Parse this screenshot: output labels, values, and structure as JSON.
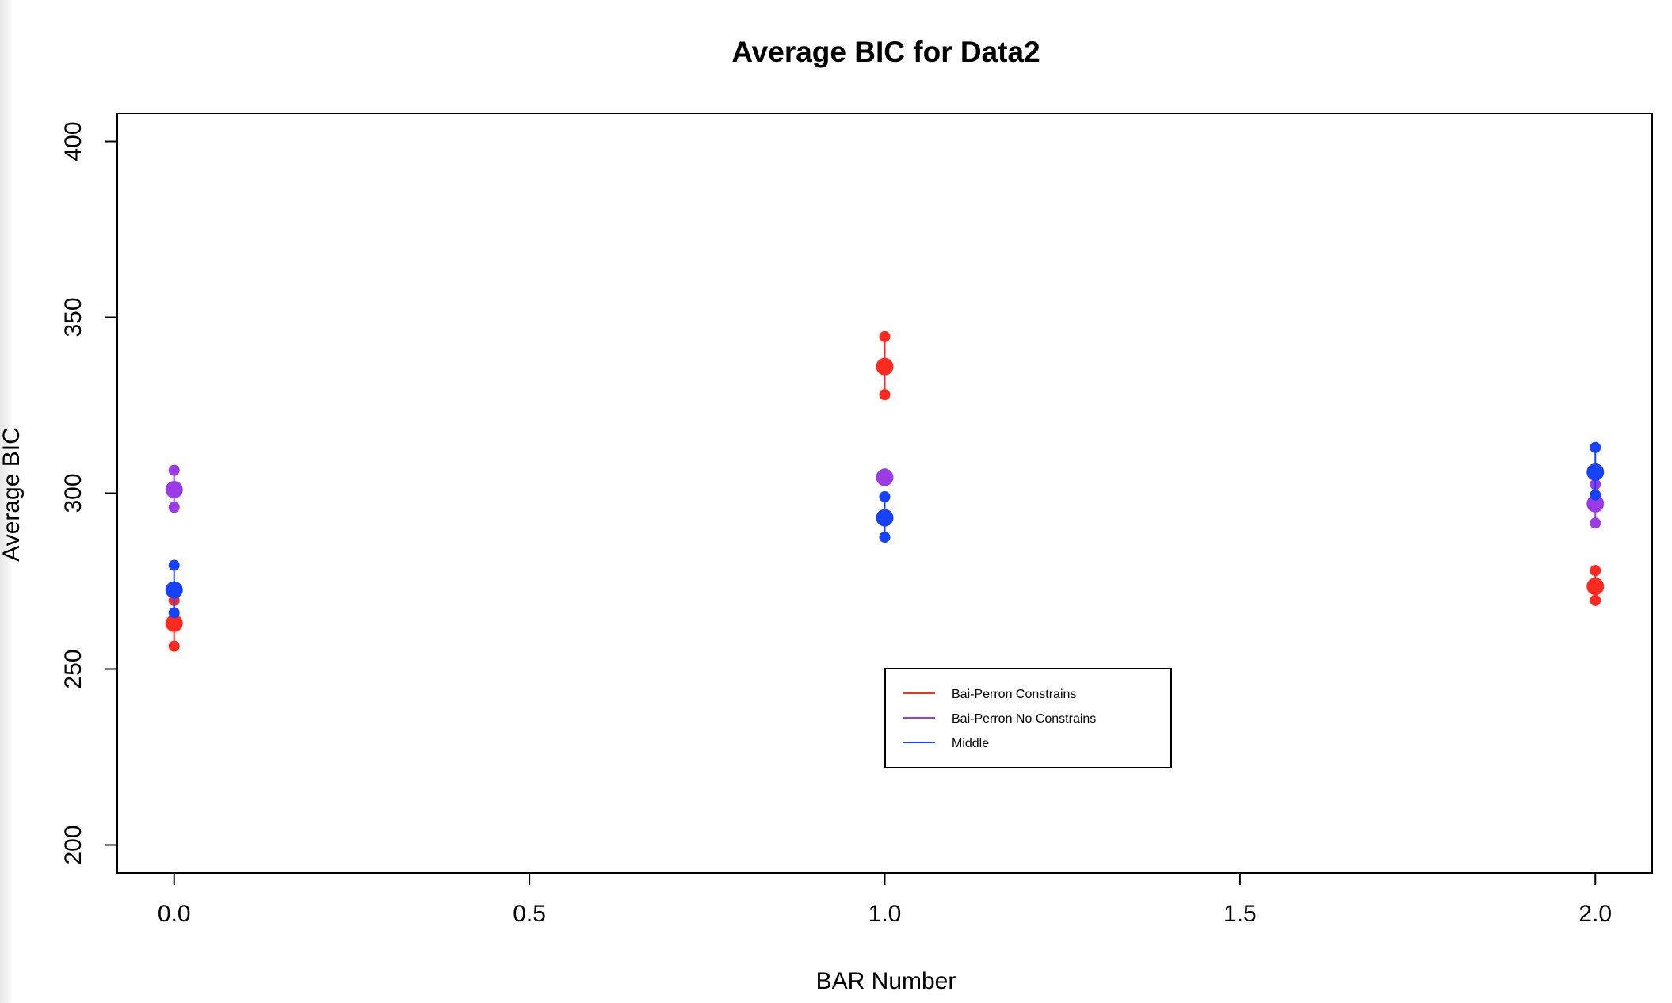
{
  "chart_data": {
    "type": "scatter",
    "title": "Average BIC for Data2",
    "xlabel": "BAR Number",
    "ylabel": "Average BIC",
    "xlim": [
      -0.08,
      2.08
    ],
    "ylim": [
      192,
      408
    ],
    "x_ticks": [
      "0.0",
      "0.5",
      "1.0",
      "1.5",
      "2.0"
    ],
    "y_ticks": [
      "200",
      "250",
      "300",
      "350",
      "400"
    ],
    "grid": false,
    "legend_position": "bottom-center",
    "series": [
      {
        "name": "Bai-Perron Constrains",
        "color": "#ff2a1f",
        "points": [
          {
            "x": 0.0,
            "mean": 263,
            "lower": 256.5,
            "upper": 269.5
          },
          {
            "x": 1.0,
            "mean": 336,
            "lower": 328,
            "upper": 344.5
          },
          {
            "x": 2.0,
            "mean": 273.5,
            "lower": 269.5,
            "upper": 278
          }
        ]
      },
      {
        "name": "Bai-Perron No Constrains",
        "color": "#9b3be6",
        "points": [
          {
            "x": 0.0,
            "mean": 301,
            "lower": 296,
            "upper": 306.5
          },
          {
            "x": 1.0,
            "mean": 304.5,
            "lower": 303.5,
            "upper": 305.5
          },
          {
            "x": 2.0,
            "mean": 297,
            "lower": 291.5,
            "upper": 302.5
          }
        ]
      },
      {
        "name": "Middle",
        "color": "#1643f7",
        "points": [
          {
            "x": 0.0,
            "mean": 272.5,
            "lower": 266,
            "upper": 279.5
          },
          {
            "x": 1.0,
            "mean": 293,
            "lower": 287.5,
            "upper": 299
          },
          {
            "x": 2.0,
            "mean": 306,
            "lower": 299.5,
            "upper": 313
          }
        ]
      }
    ]
  }
}
